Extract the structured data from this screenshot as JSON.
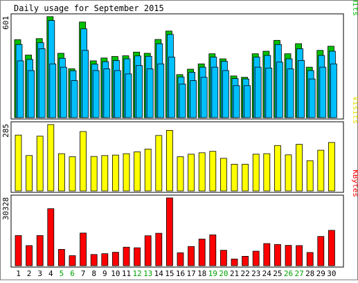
{
  "chart_data": {
    "type": "bar",
    "title": "Daily usage for September 2015",
    "categories": [
      "1",
      "2",
      "3",
      "4",
      "5",
      "6",
      "7",
      "8",
      "9",
      "10",
      "11",
      "12",
      "13",
      "14",
      "15",
      "16",
      "17",
      "18",
      "19",
      "20",
      "21",
      "22",
      "23",
      "24",
      "25",
      "26",
      "27",
      "28",
      "29",
      "30"
    ],
    "weekend_days": [
      "5",
      "6",
      "12",
      "13",
      "19",
      "20",
      "26",
      "27"
    ],
    "panels": [
      {
        "name": "hits",
        "ylabel_parts": [
          {
            "text": "Pages",
            "color": "#00c0ff"
          },
          {
            "text": "/",
            "color": "#000000"
          },
          {
            "text": "Files",
            "color": "#00c0ff"
          },
          {
            "text": "/",
            "color": "#000000"
          },
          {
            "text": "Hits",
            "color": "#00c000"
          }
        ],
        "ymax_label": "601",
        "ymax": 601,
        "series": [
          {
            "values": [
              464,
              372,
              470,
              601,
              383,
              291,
              569,
              338,
              355,
              364,
              368,
              390,
              383,
              465,
              515,
              256,
              288,
              320,
              380,
              350,
              248,
              240,
              380,
              395,
              460,
              380,
              440,
              300,
              400,
              425
            ],
            "color": "#00c000"
          },
          {
            "values": [
              435,
              346,
              446,
              578,
              353,
              279,
              528,
              318,
              333,
              340,
              350,
              367,
              365,
              440,
              495,
              242,
              270,
              300,
              360,
              335,
              232,
              230,
              360,
              370,
              435,
              350,
              410,
              280,
              370,
              395
            ],
            "color": "#00c0ff"
          },
          {
            "values": [
              338,
              280,
              410,
              320,
              300,
              220,
              400,
              280,
              290,
              280,
              260,
              310,
              290,
              320,
              360,
              200,
              220,
              240,
              300,
              280,
              190,
              190,
              300,
              295,
              330,
              290,
              340,
              230,
              300,
              320
            ],
            "color": "#00c0ff"
          }
        ]
      },
      {
        "name": "visits",
        "ylabel_parts": [
          {
            "text": "Visits",
            "color": "#e0e000"
          }
        ],
        "ymax_label": "285",
        "ymax": 285,
        "series": [
          {
            "values": [
              240,
              152,
              235,
              285,
              160,
              147,
              255,
              148,
              152,
              154,
              160,
              168,
              180,
              238,
              260,
              147,
              158,
              164,
              170,
              140,
              115,
              115,
              158,
              160,
              195,
              155,
              200,
              130,
              175,
              208
            ],
            "color": "#ffff00"
          }
        ]
      },
      {
        "name": "kbytes",
        "ylabel_parts": [
          {
            "text": "KBytes",
            "color": "#ff0000"
          }
        ],
        "ymax_label": "30328",
        "ymax": 30328,
        "series": [
          {
            "values": [
              13500,
              9000,
              13500,
              25500,
              7300,
              4500,
              14600,
              5000,
              5400,
              6000,
              8300,
              8000,
              13400,
              14500,
              30328,
              5800,
              8600,
              11900,
              13800,
              6900,
              3000,
              4200,
              6500,
              9900,
              9500,
              9100,
              9000,
              5900,
              13100,
              15800
            ],
            "color": "#ff0000"
          }
        ]
      }
    ]
  }
}
